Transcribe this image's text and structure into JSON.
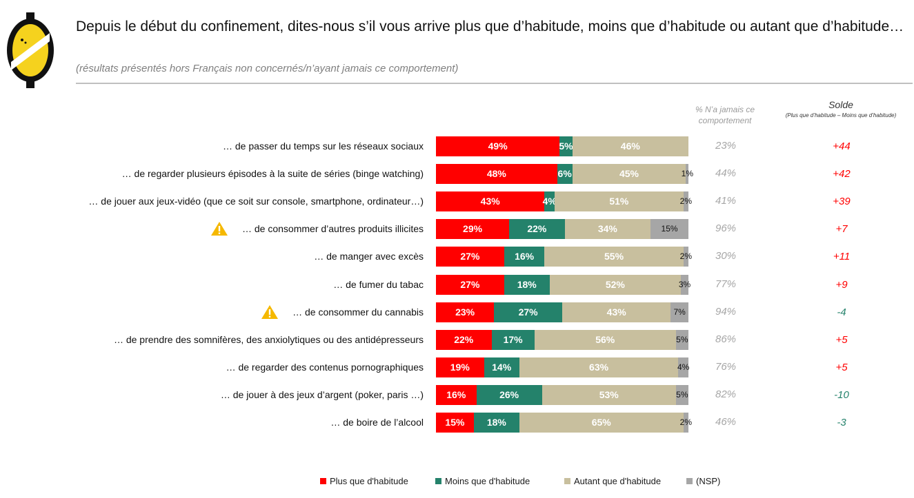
{
  "header": {
    "title": "Depuis le début du confinement, dites-nous s’il vous arrive plus que d’habitude, moins que d’habitude ou autant que d’habitude…",
    "subtitle": "(résultats présentés hors Français non concernés/n’ayant jamais ce comportement)"
  },
  "columns": {
    "never_header": "% N’a jamais ce comportement",
    "solde_title": "Solde",
    "solde_subtitle": "(Plus que d’habitude – Moins que d’habitude)"
  },
  "colors": {
    "plus": "#ff0000",
    "moins": "#24826b",
    "autant": "#c8bf9e",
    "nsp": "#a6a6a6",
    "solde_positive": "#ff0000",
    "solde_negative": "#24826b",
    "warning": "#f5b800"
  },
  "chart_data": {
    "type": "bar",
    "orientation": "horizontal-stacked-100",
    "categories": [
      "… de passer du temps sur les réseaux sociaux",
      "… de regarder plusieurs épisodes à la suite de séries (binge watching)",
      "… de jouer aux jeux-vidéo (que ce soit sur console, smartphone, ordinateur…)",
      "… de consommer d’autres produits illicites",
      "… de manger avec excès",
      "… de fumer du tabac",
      "… de consommer du cannabis",
      "… de prendre des somnifères, des anxiolytiques ou des antidépresseurs",
      "… de regarder des contenus pornographiques",
      "… de jouer à des jeux d’argent (poker, paris …)",
      "… de boire de l’alcool"
    ],
    "warning_icon": [
      false,
      false,
      false,
      true,
      false,
      false,
      true,
      false,
      false,
      false,
      false
    ],
    "series": [
      {
        "name": "Plus que d'habitude",
        "values": [
          49,
          48,
          43,
          29,
          27,
          27,
          23,
          22,
          19,
          16,
          15
        ],
        "labels": [
          "49%",
          "48%",
          "43%",
          "29%",
          "27%",
          "27%",
          "23%",
          "22%",
          "19%",
          "16%",
          "15%"
        ]
      },
      {
        "name": "Moins que d'habitude",
        "values": [
          5,
          6,
          4,
          22,
          16,
          18,
          27,
          17,
          14,
          26,
          18
        ],
        "labels": [
          "5%",
          "6%",
          "4%",
          "22%",
          "16%",
          "18%",
          "27%",
          "17%",
          "14%",
          "26%",
          "18%"
        ]
      },
      {
        "name": "Autant que d'habitude",
        "values": [
          46,
          45,
          51,
          34,
          55,
          52,
          43,
          56,
          63,
          53,
          65
        ],
        "labels": [
          "46%",
          "45%",
          "51%",
          "34%",
          "55%",
          "52%",
          "43%",
          "56%",
          "63%",
          "53%",
          "65%"
        ]
      },
      {
        "name": "(NSP)",
        "values": [
          0,
          1,
          2,
          15,
          2,
          3,
          7,
          5,
          4,
          5,
          2
        ],
        "labels": [
          "",
          "1%",
          "2%",
          "15%",
          "2%",
          "3%",
          "7%",
          "5%",
          "4%",
          "5%",
          "2%"
        ]
      }
    ],
    "never": [
      "23%",
      "44%",
      "41%",
      "96%",
      "30%",
      "77%",
      "94%",
      "86%",
      "76%",
      "82%",
      "46%"
    ],
    "solde": [
      "+44",
      "+42",
      "+39",
      "+7",
      "+11",
      "+9",
      "-4",
      "+5",
      "+5",
      "-10",
      "-3"
    ],
    "legend_placement": "bottom",
    "xlim": [
      0,
      100
    ]
  }
}
